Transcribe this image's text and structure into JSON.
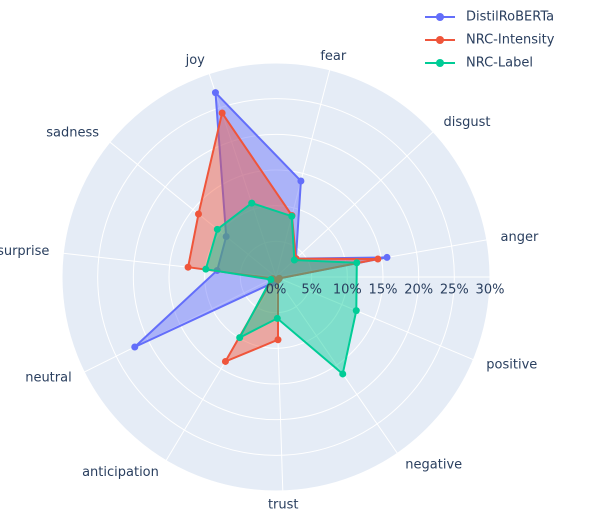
{
  "chart_data": {
    "type": "radar",
    "categories": [
      "anger",
      "disgust",
      "fear",
      "joy",
      "sadness",
      "surprise",
      "neutral",
      "anticipation",
      "trust",
      "negative",
      "positive"
    ],
    "series": [
      {
        "name": "DistilRoBERTa",
        "color": "#636efa",
        "values": [
          15.8,
          3.8,
          13.9,
          27.2,
          9.0,
          8.3,
          22.1,
          1.0,
          0.5,
          0.5,
          0.5
        ]
      },
      {
        "name": "NRC-Intensity",
        "color": "#ef553b",
        "values": [
          14.5,
          3.8,
          8.9,
          24.2,
          14.0,
          12.4,
          0.5,
          13.8,
          8.8,
          0.5,
          0.5
        ]
      },
      {
        "name": "NRC-Label",
        "color": "#00cc96",
        "values": [
          11.5,
          3.5,
          8.8,
          10.9,
          10.6,
          9.9,
          0.8,
          9.9,
          5.8,
          16.5,
          12.2
        ]
      }
    ],
    "ylim": [
      0,
      30
    ],
    "yticks": [
      {
        "value": 0,
        "label": "0%"
      },
      {
        "value": 5,
        "label": "5%"
      },
      {
        "value": 10,
        "label": "10%"
      },
      {
        "value": 15,
        "label": "15%"
      },
      {
        "value": 20,
        "label": "20%"
      },
      {
        "value": 25,
        "label": "25%"
      },
      {
        "value": 30,
        "label": "30%"
      }
    ],
    "legend": "top-right"
  }
}
